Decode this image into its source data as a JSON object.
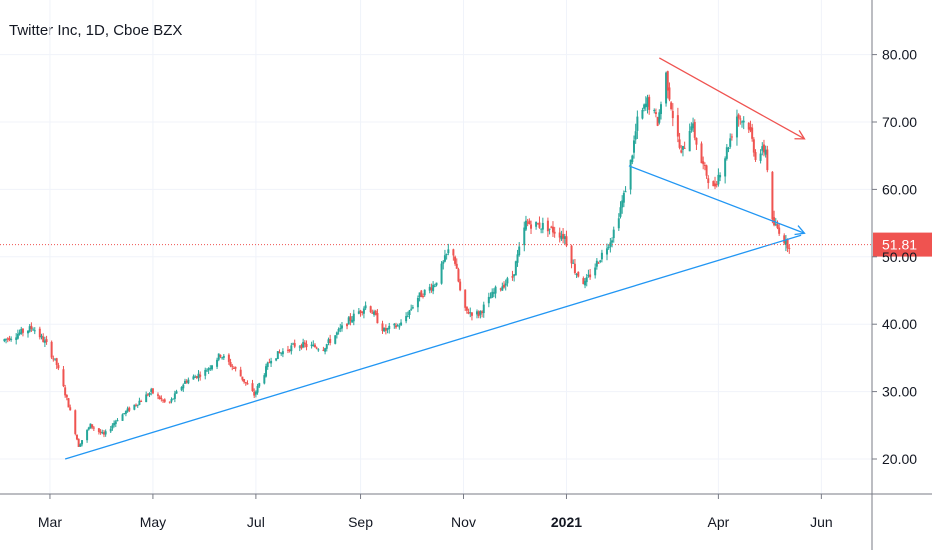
{
  "header": {
    "title": "Twitter Inc, 1D, Cboe BZX"
  },
  "colors": {
    "up": "#26a69a",
    "down": "#ef5350",
    "trend_support": "#2196f3",
    "trend_resistance": "#ef5350",
    "grid": "#f0f3fa",
    "axis_border": "#787b86",
    "price_line": "#ef5350"
  },
  "chart_data": {
    "type": "candlestick",
    "y_ticks": [
      {
        "value": 80,
        "label": "80.00"
      },
      {
        "value": 70,
        "label": "70.00"
      },
      {
        "value": 60,
        "label": "60.00"
      },
      {
        "value": 50,
        "label": "50.00"
      },
      {
        "value": 40,
        "label": "40.00"
      },
      {
        "value": 30,
        "label": "30.00"
      },
      {
        "value": 20,
        "label": "20.00"
      }
    ],
    "x_ticks": [
      {
        "date": "2020-03-01",
        "label": "Mar",
        "bold": false
      },
      {
        "date": "2020-05-01",
        "label": "May",
        "bold": false
      },
      {
        "date": "2020-07-01",
        "label": "Jul",
        "bold": false
      },
      {
        "date": "2020-09-01",
        "label": "Sep",
        "bold": false
      },
      {
        "date": "2020-11-01",
        "label": "Nov",
        "bold": false
      },
      {
        "date": "2021-01-01",
        "label": "2021",
        "bold": true
      },
      {
        "date": "2021-04-01",
        "label": "Apr",
        "bold": false
      },
      {
        "date": "2021-06-01",
        "label": "Jun",
        "bold": false
      }
    ],
    "last_price": {
      "value": 51.81,
      "label": "51.81"
    },
    "price_path": [
      [
        "2020-02-01",
        37.5
      ],
      [
        "2020-02-10",
        38.5
      ],
      [
        "2020-02-20",
        39.5
      ],
      [
        "2020-02-28",
        37.0
      ],
      [
        "2020-03-05",
        34.0
      ],
      [
        "2020-03-12",
        28.0
      ],
      [
        "2020-03-18",
        22.0
      ],
      [
        "2020-03-25",
        25.0
      ],
      [
        "2020-04-02",
        23.5
      ],
      [
        "2020-04-10",
        26.0
      ],
      [
        "2020-04-20",
        28.0
      ],
      [
        "2020-04-30",
        30.0
      ],
      [
        "2020-05-10",
        28.0
      ],
      [
        "2020-05-20",
        31.5
      ],
      [
        "2020-06-01",
        33.0
      ],
      [
        "2020-06-10",
        35.5
      ],
      [
        "2020-06-20",
        33.0
      ],
      [
        "2020-06-30",
        29.5
      ],
      [
        "2020-07-10",
        35.0
      ],
      [
        "2020-07-25",
        37.0
      ],
      [
        "2020-08-10",
        36.5
      ],
      [
        "2020-08-25",
        40.5
      ],
      [
        "2020-09-05",
        43.0
      ],
      [
        "2020-09-15",
        39.0
      ],
      [
        "2020-09-25",
        40.0
      ],
      [
        "2020-10-05",
        44.0
      ],
      [
        "2020-10-15",
        46.0
      ],
      [
        "2020-10-25",
        52.0
      ],
      [
        "2020-11-01",
        42.0
      ],
      [
        "2020-11-10",
        41.5
      ],
      [
        "2020-11-20",
        45.0
      ],
      [
        "2020-11-30",
        47.0
      ],
      [
        "2020-12-08",
        55.0
      ],
      [
        "2020-12-20",
        54.5
      ],
      [
        "2020-12-31",
        53.0
      ],
      [
        "2021-01-06",
        48.0
      ],
      [
        "2021-01-12",
        46.0
      ],
      [
        "2021-01-20",
        49.5
      ],
      [
        "2021-01-28",
        53.0
      ],
      [
        "2021-02-04",
        59.0
      ],
      [
        "2021-02-08",
        64.0
      ],
      [
        "2021-02-12",
        70.0
      ],
      [
        "2021-02-18",
        73.0
      ],
      [
        "2021-02-24",
        70.0
      ],
      [
        "2021-03-01",
        77.0
      ],
      [
        "2021-03-05",
        71.0
      ],
      [
        "2021-03-10",
        65.0
      ],
      [
        "2021-03-16",
        70.0
      ],
      [
        "2021-03-22",
        64.0
      ],
      [
        "2021-03-29",
        60.0
      ],
      [
        "2021-04-05",
        65.0
      ],
      [
        "2021-04-12",
        71.0
      ],
      [
        "2021-04-19",
        69.5
      ],
      [
        "2021-04-23",
        65.0
      ],
      [
        "2021-04-29",
        66.0
      ],
      [
        "2021-05-03",
        55.0
      ],
      [
        "2021-05-07",
        54.0
      ],
      [
        "2021-05-11",
        52.0
      ],
      [
        "2021-05-13",
        51.81
      ]
    ],
    "trend_lines": [
      {
        "from": [
          "2020-03-10",
          20.0
        ],
        "to": [
          "2021-05-20",
          53.2
        ],
        "color": "trend_support",
        "arrow": false
      },
      {
        "from": [
          "2021-02-07",
          63.5
        ],
        "to": [
          "2021-05-22",
          53.5
        ],
        "color": "trend_support",
        "arrow": true
      },
      {
        "from": [
          "2021-02-25",
          79.5
        ],
        "to": [
          "2021-05-22",
          67.5
        ],
        "color": "trend_resistance",
        "arrow": true
      }
    ]
  }
}
